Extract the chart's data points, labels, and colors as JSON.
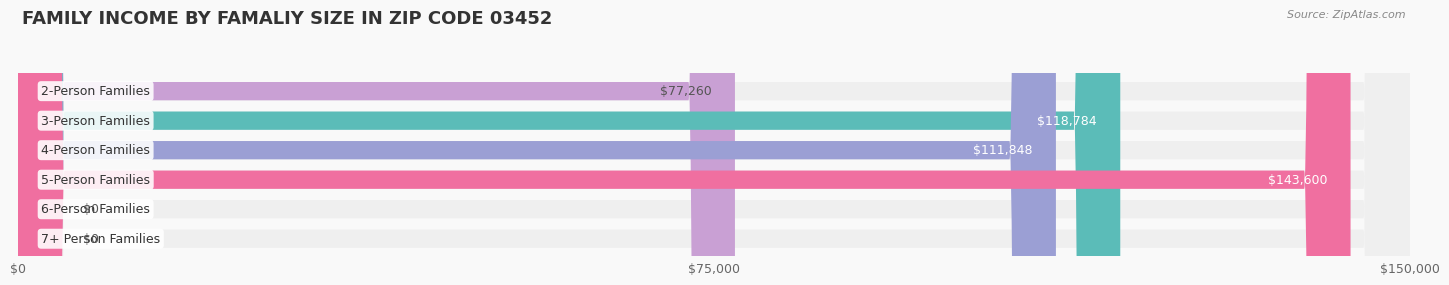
{
  "title": "FAMILY INCOME BY FAMALIY SIZE IN ZIP CODE 03452",
  "source": "Source: ZipAtlas.com",
  "categories": [
    "2-Person Families",
    "3-Person Families",
    "4-Person Families",
    "5-Person Families",
    "6-Person Families",
    "7+ Person Families"
  ],
  "values": [
    77260,
    118784,
    111848,
    143600,
    0,
    0
  ],
  "bar_colors": [
    "#c9a0d4",
    "#5bbcb8",
    "#9b9fd4",
    "#f06fa0",
    "#f5c9a0",
    "#f5a8a8"
  ],
  "bar_bg_color": "#efefef",
  "value_label_colors": [
    "#555555",
    "#ffffff",
    "#ffffff",
    "#ffffff",
    "#555555",
    "#555555"
  ],
  "xlim": [
    0,
    150000
  ],
  "xticks": [
    0,
    75000,
    150000
  ],
  "xtick_labels": [
    "$0",
    "$75,000",
    "$150,000"
  ],
  "value_labels": [
    "$77,260",
    "$118,784",
    "$111,848",
    "$143,600",
    "$0",
    "$0"
  ],
  "background_color": "#f9f9f9",
  "title_fontsize": 13,
  "label_fontsize": 9,
  "value_fontsize": 9
}
